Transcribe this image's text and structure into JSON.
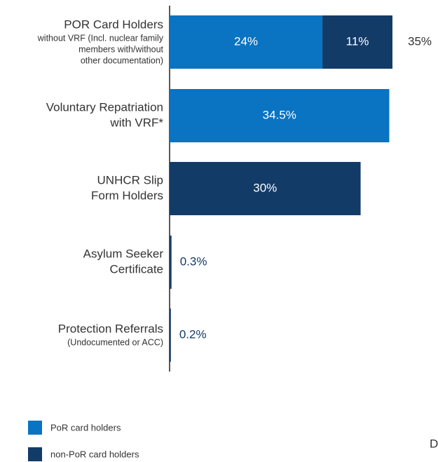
{
  "chart_data": {
    "type": "stacked-bar-horizontal",
    "categories": [
      [
        "POR Card Holders"
      ],
      [
        "Voluntary Repatriation",
        "with VRF*"
      ],
      [
        "UNHCR Slip",
        "Form Holders"
      ],
      [
        "Asylum Seeker",
        "Certificate"
      ],
      [
        "Protection Referrals"
      ]
    ],
    "category_notes": [
      [
        "without VRF (Incl. nuclear family",
        "members with/without",
        "other documentation)"
      ],
      null,
      null,
      null,
      [
        "(Undocumented or ACC)"
      ]
    ],
    "series": [
      {
        "name": "PoR card holders",
        "color": "#0a73c2",
        "values": [
          24,
          34.5,
          null,
          null,
          null
        ],
        "value_labels": [
          "24%",
          "34.5%",
          null,
          null,
          null
        ]
      },
      {
        "name": "non-PoR card holders",
        "color": "#133b68",
        "values": [
          11,
          null,
          30,
          0.3,
          0.2
        ],
        "value_labels": [
          "11%",
          null,
          "30%",
          "0.3%",
          "0.2%"
        ]
      }
    ],
    "totals": [
      35,
      null,
      null,
      null,
      null
    ],
    "total_labels": [
      "35%",
      null,
      null,
      null,
      null
    ],
    "edge_text": "D"
  }
}
